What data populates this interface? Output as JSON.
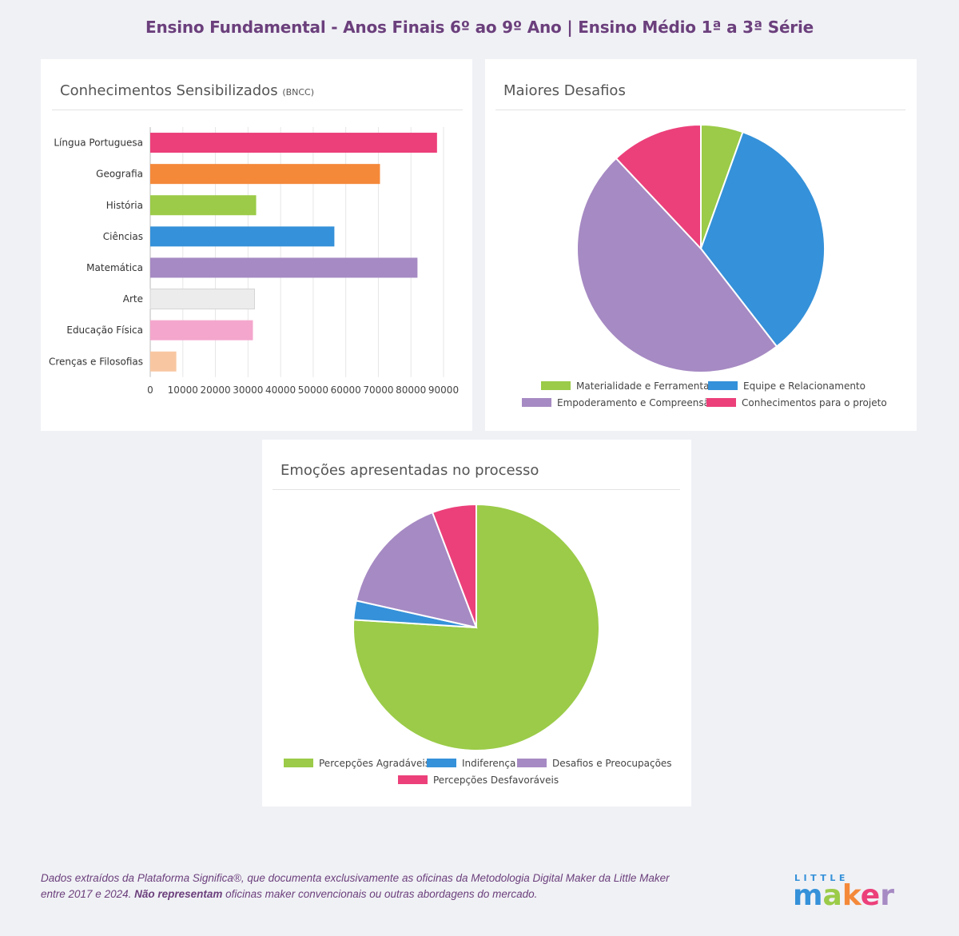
{
  "page": {
    "title": "Ensino Fundamental - Anos Finais  6º ao 9º Ano | Ensino Médio 1ª a 3ª Série"
  },
  "cards": {
    "bar": {
      "title": "Conhecimentos Sensibilizados",
      "title_suffix": "(BNCC)"
    },
    "pie1": {
      "title": "Maiores Desafios"
    },
    "pie2": {
      "title": "Emoções apresentadas no processo"
    }
  },
  "footer": {
    "line1": "Dados extraídos da Plataforma Significa®, que documenta exclusivamente as oficinas da Metodologia Digital Maker da Little Maker",
    "line2_prefix": "entre 2017 e 2024. ",
    "line2_bold": "Não representam",
    "line2_suffix": " oficinas maker convencionais ou outras abordagens do mercado."
  },
  "logo": {
    "top_text": "LITTLE",
    "main_text": "maker"
  },
  "chart_data": [
    {
      "type": "bar",
      "orientation": "horizontal",
      "categories": [
        "Língua Portuguesa",
        "Geografia",
        "História",
        "Ciências",
        "Matemática",
        "Arte",
        "Educação Física",
        "Crenças e Filosofias"
      ],
      "values": [
        88000,
        70500,
        32500,
        56500,
        82000,
        32000,
        31500,
        8000
      ],
      "colors": [
        "#ec407a",
        "#f4893a",
        "#9bcb48",
        "#3591d9",
        "#a68ac3",
        "#ececec",
        "#f4a6cc",
        "#f8c7a2"
      ],
      "xlim": [
        0,
        90000
      ],
      "xticks": [
        0,
        10000,
        20000,
        30000,
        40000,
        50000,
        60000,
        70000,
        80000,
        90000
      ],
      "grid": true
    },
    {
      "type": "pie",
      "labels": [
        "Materialidade e Ferramentas",
        "Equipe e Relacionamento",
        "Empoderamento e Compreensão",
        "Conhecimentos para o projeto"
      ],
      "values": [
        5.5,
        34,
        48.5,
        12
      ],
      "colors": [
        "#9bcb48",
        "#3591d9",
        "#a68ac3",
        "#ec407a"
      ],
      "legend": "bottom"
    },
    {
      "type": "pie",
      "labels": [
        "Percepções Agradáveis",
        "Indiferença",
        "Desafios e Preocupações",
        "Percepções Desfavoráveis"
      ],
      "values": [
        76,
        2.5,
        15.7,
        5.8
      ],
      "colors": [
        "#9bcb48",
        "#3591d9",
        "#a68ac3",
        "#ec407a"
      ],
      "legend": "bottom"
    }
  ]
}
